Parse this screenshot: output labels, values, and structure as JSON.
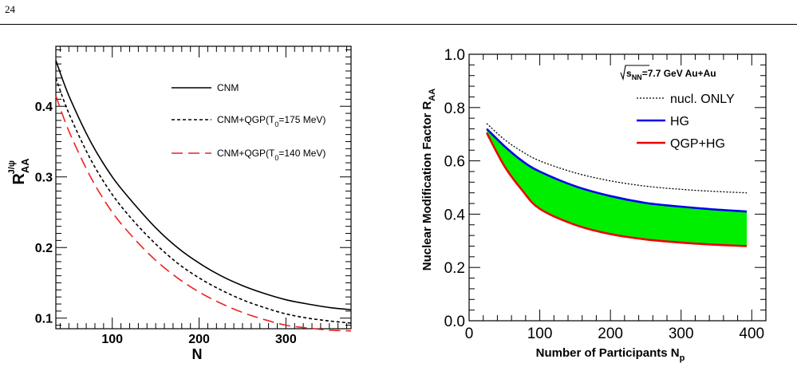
{
  "page": {
    "number": "24"
  },
  "chart_data": [
    {
      "type": "line",
      "title": "",
      "xlabel": "N",
      "ylabel_main": "R",
      "ylabel_sub": "AA",
      "ylabel_sup": "J/ψ",
      "xlim": [
        35,
        375
      ],
      "ylim": [
        0.085,
        0.485
      ],
      "xticks": [
        100,
        200,
        300
      ],
      "yticks": [
        0.1,
        0.2,
        0.3,
        0.4
      ],
      "xtick_labels": [
        "100",
        "200",
        "300"
      ],
      "ytick_labels": [
        "0.1",
        "0.2",
        "0.3",
        "0.4"
      ],
      "grid": false,
      "legend_position": "top-right",
      "series": [
        {
          "name": "CNM",
          "legend_parts": [
            "CNM"
          ],
          "color": "#000000",
          "dash": "solid",
          "x": [
            35,
            50,
            75,
            100,
            125,
            150,
            175,
            200,
            225,
            250,
            275,
            300,
            325,
            350,
            375
          ],
          "y": [
            0.465,
            0.415,
            0.35,
            0.3,
            0.262,
            0.228,
            0.2,
            0.178,
            0.16,
            0.146,
            0.135,
            0.126,
            0.12,
            0.115,
            0.112
          ]
        },
        {
          "name": "CNM+QGP(T0=175 MeV)",
          "legend_parts": [
            "CNM+QGP(T",
            "0",
            "=175 MeV)"
          ],
          "color": "#000000",
          "dash": "dashed-short",
          "x": [
            35,
            50,
            75,
            100,
            125,
            150,
            175,
            200,
            225,
            250,
            275,
            300,
            325,
            350,
            375
          ],
          "y": [
            0.44,
            0.39,
            0.325,
            0.275,
            0.237,
            0.205,
            0.178,
            0.157,
            0.14,
            0.126,
            0.115,
            0.106,
            0.1,
            0.096,
            0.093
          ]
        },
        {
          "name": "CNM+QGP(T0=140 MeV)",
          "legend_parts": [
            "CNM+QGP(T",
            "0",
            "=140 MeV)"
          ],
          "color": "#ee2222",
          "dash": "dashed-long",
          "x": [
            35,
            50,
            75,
            100,
            125,
            150,
            175,
            200,
            225,
            250,
            275,
            300,
            325,
            350,
            375
          ],
          "y": [
            0.415,
            0.365,
            0.3,
            0.25,
            0.213,
            0.182,
            0.157,
            0.137,
            0.121,
            0.108,
            0.098,
            0.09,
            0.086,
            0.083,
            0.082
          ]
        }
      ]
    },
    {
      "type": "area",
      "title": "",
      "xlabel": "Number of Participants N",
      "xlabel_sub": "p",
      "ylabel": "Nuclear Modification Factor R",
      "ylabel_sub": "AA",
      "xlim": [
        0,
        420
      ],
      "ylim": [
        0.0,
        1.0
      ],
      "xticks": [
        0,
        100,
        200,
        300,
        400
      ],
      "yticks": [
        0.0,
        0.2,
        0.4,
        0.6,
        0.8,
        1.0
      ],
      "xtick_labels": [
        "0",
        "100",
        "200",
        "300",
        "400"
      ],
      "ytick_labels": [
        "0.0",
        "0.2",
        "0.4",
        "0.6",
        "0.8",
        "1.0"
      ],
      "grid": false,
      "legend_position": "top-right",
      "annotation": {
        "sqrt": "s",
        "sqrt_sub": "NN",
        "text": "=7.7 GeV Au+Au"
      },
      "band_fill": "#00ee00",
      "series": [
        {
          "name": "nucl. ONLY",
          "color": "#000000",
          "dash": "dotted",
          "x": [
            25,
            50,
            75,
            100,
            150,
            200,
            250,
            300,
            350,
            393
          ],
          "y": [
            0.74,
            0.68,
            0.635,
            0.6,
            0.555,
            0.525,
            0.505,
            0.493,
            0.485,
            0.48
          ]
        },
        {
          "name": "HG",
          "color": "#0000ee",
          "dash": "solid",
          "x": [
            25,
            50,
            75,
            100,
            150,
            200,
            250,
            300,
            350,
            393
          ],
          "y": [
            0.72,
            0.655,
            0.6,
            0.56,
            0.505,
            0.468,
            0.442,
            0.428,
            0.417,
            0.41
          ]
        },
        {
          "name": "QGP+HG",
          "color": "#ee0000",
          "dash": "solid",
          "x": [
            25,
            50,
            75,
            100,
            150,
            200,
            250,
            300,
            350,
            393
          ],
          "y": [
            0.705,
            0.58,
            0.49,
            0.42,
            0.36,
            0.325,
            0.305,
            0.293,
            0.285,
            0.28
          ]
        }
      ]
    }
  ]
}
